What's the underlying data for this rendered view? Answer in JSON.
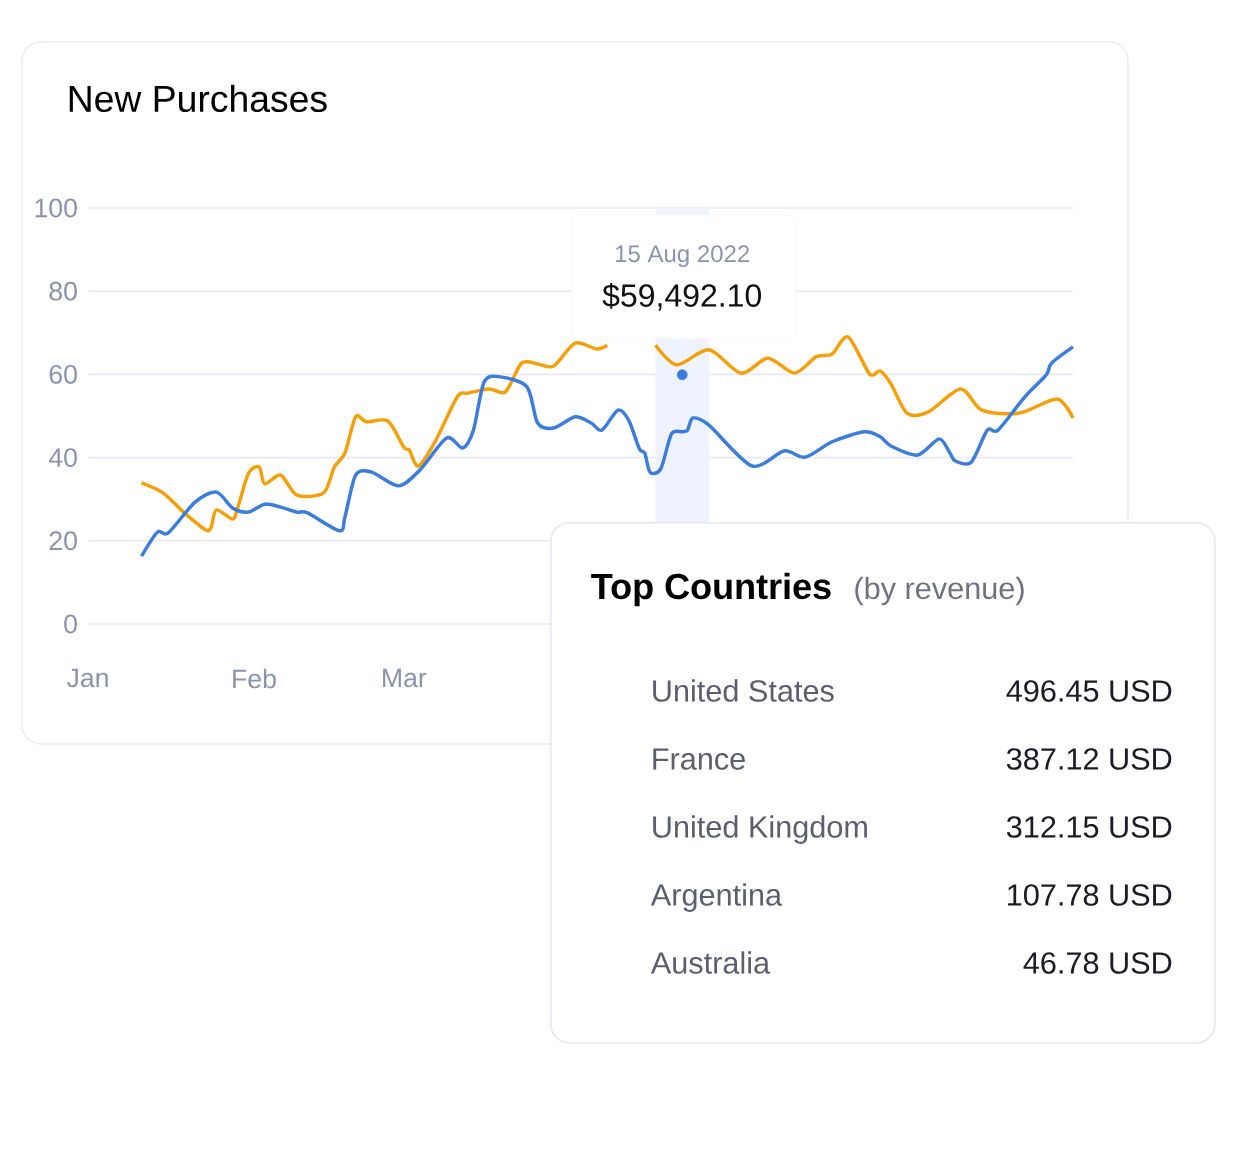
{
  "chart_data": [
    {
      "type": "line",
      "title": "New Purchases",
      "xlim": [
        "2022-01-01",
        "2022-07-04"
      ],
      "xticks": [
        {
          "value": "2022-01-01",
          "label": "Jan"
        },
        {
          "value": "2022-02-01",
          "label": "Feb"
        },
        {
          "value": "2022-03-01",
          "label": "Mar"
        }
      ],
      "ylim": [
        0,
        100
      ],
      "yticks": [
        0,
        20,
        40,
        60,
        80,
        100
      ],
      "grid": "y",
      "series": [
        {
          "color": "#f59f0a",
          "x": [
            "2022-01-11",
            "2022-01-15",
            "2022-01-19",
            "2022-01-23",
            "2022-01-24",
            "2022-01-25",
            "2022-01-28",
            "2022-01-29",
            "2022-01-31",
            "2022-02-02",
            "2022-02-03",
            "2022-02-06",
            "2022-02-09",
            "2022-02-14",
            "2022-02-16",
            "2022-02-18",
            "2022-02-20",
            "2022-02-22",
            "2022-02-26",
            "2022-03-01",
            "2022-03-02",
            "2022-03-03",
            "2022-03-04",
            "2022-03-07",
            "2022-03-11",
            "2022-03-13",
            "2022-03-17",
            "2022-03-20",
            "2022-03-23",
            "2022-03-26",
            "2022-03-29",
            "2022-04-02",
            "2022-04-06",
            "2022-04-08",
            "2022-04-12",
            "2022-04-17",
            "2022-04-21",
            "2022-04-27",
            "2022-05-03",
            "2022-05-08",
            "2022-05-13",
            "2022-05-17",
            "2022-05-20",
            "2022-05-23",
            "2022-05-27",
            "2022-05-29",
            "2022-05-31",
            "2022-06-03",
            "2022-06-07",
            "2022-06-13",
            "2022-06-17",
            "2022-06-24",
            "2022-07-01",
            "2022-07-04"
          ],
          "values": [
            33.9,
            31.5,
            26.7,
            22.6,
            23.3,
            27.4,
            25.2,
            28.1,
            36.3,
            37.7,
            33.7,
            35.8,
            31.0,
            31.5,
            37.7,
            41.1,
            49.8,
            48.6,
            48.8,
            42.5,
            41.8,
            38.9,
            38.2,
            44.2,
            54.6,
            55.5,
            56.5,
            55.8,
            62.7,
            62.5,
            62.0,
            67.5,
            66.1,
            67.0,
            null,
            67.0,
            62.3,
            65.9,
            60.3,
            63.9,
            60.3,
            64.2,
            64.9,
            69.0,
            60.1,
            60.8,
            57.7,
            50.7,
            51.0,
            56.5,
            51.4,
            50.7,
            54.1,
            49.5
          ]
        },
        {
          "color": "#3b7ddd",
          "x": [
            "2022-01-11",
            "2022-01-14",
            "2022-01-16",
            "2022-01-21",
            "2022-01-25",
            "2022-01-28",
            "2022-01-31",
            "2022-02-03",
            "2022-02-06",
            "2022-02-09",
            "2022-02-11",
            "2022-02-17",
            "2022-02-18",
            "2022-02-20",
            "2022-02-23",
            "2022-02-28",
            "2022-03-04",
            "2022-03-09",
            "2022-03-12",
            "2022-03-14",
            "2022-03-16",
            "2022-03-19",
            "2022-03-24",
            "2022-03-26",
            "2022-03-29",
            "2022-04-02",
            "2022-04-05",
            "2022-04-07",
            "2022-04-10",
            "2022-04-12",
            "2022-04-14",
            "2022-04-15",
            "2022-04-16",
            "2022-04-18",
            "2022-04-20",
            "2022-04-22",
            "2022-04-23",
            "2022-04-24",
            "2022-04-27",
            "2022-05-05",
            "2022-05-11",
            "2022-05-15",
            "2022-05-20",
            "2022-05-26",
            "2022-05-29",
            "2022-05-31",
            "2022-06-05",
            "2022-06-09",
            "2022-06-11",
            "2022-06-12",
            "2022-06-15",
            "2022-06-18",
            "2022-06-20",
            "2022-06-25",
            "2022-06-29",
            "2022-06-30",
            "2022-07-04"
          ],
          "values": [
            16.3,
            22.1,
            21.9,
            29.3,
            31.7,
            27.9,
            26.9,
            28.8,
            28.1,
            26.9,
            26.7,
            22.4,
            25.7,
            35.8,
            36.5,
            33.2,
            37.0,
            44.7,
            42.3,
            46.6,
            58.2,
            59.4,
            57.0,
            48.3,
            47.1,
            49.8,
            48.3,
            46.6,
            51.4,
            49.0,
            42.1,
            41.1,
            36.5,
            37.3,
            45.7,
            46.2,
            46.6,
            49.5,
            47.8,
            38.0,
            41.6,
            40.1,
            43.8,
            46.2,
            45.0,
            42.8,
            40.6,
            44.5,
            41.1,
            39.2,
            38.9,
            46.6,
            46.6,
            54.6,
            59.9,
            62.7,
            66.6
          ]
        },
        {
          "type": "scatter",
          "color": "#3b7ddd",
          "x": [
            "2022-04-22"
          ],
          "values": [
            59.9
          ]
        }
      ],
      "bands": [
        {
          "axis": "x",
          "from": "2022-04-17",
          "to": "2022-04-27",
          "color": "#eef3fd"
        }
      ],
      "annotations": [
        "15 Aug 2022",
        "$59,492.10"
      ]
    },
    {
      "type": "other",
      "title": "Top Countries",
      "subtitle": "(by revenue)",
      "categories": [
        "United States",
        "France",
        "United Kingdom",
        "Argentina",
        "Australia"
      ],
      "value_labels": [
        "496.45 USD",
        "387.12 USD",
        "312.15 USD",
        "107.78 USD",
        "46.78 USD"
      ]
    }
  ]
}
